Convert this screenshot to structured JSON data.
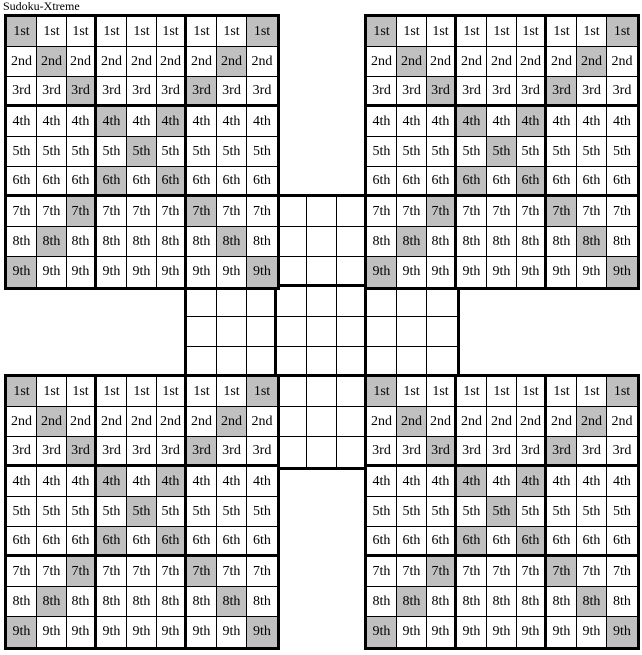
{
  "title": "Sudoku-Xtreme",
  "cell_labels": [
    "1st",
    "2nd",
    "3rd",
    "4th",
    "5th",
    "6th",
    "7th",
    "8th",
    "9th"
  ],
  "shaded_columns_by_row": [
    [
      1,
      9
    ],
    [
      2,
      8
    ],
    [
      3,
      7
    ],
    [
      4,
      6
    ],
    [
      5
    ],
    [
      4,
      6
    ],
    [
      3,
      7
    ],
    [
      2,
      8
    ],
    [
      1,
      9
    ]
  ],
  "corner_grids": [
    {
      "id": "top-left"
    },
    {
      "id": "top-right"
    },
    {
      "id": "bottom-left"
    },
    {
      "id": "bottom-right"
    }
  ],
  "center_grid": {
    "id": "center"
  },
  "colors": {
    "shaded_cell": "#c0c0c0",
    "grid_line": "#000000",
    "text": "#000000",
    "background": "#ffffff"
  }
}
